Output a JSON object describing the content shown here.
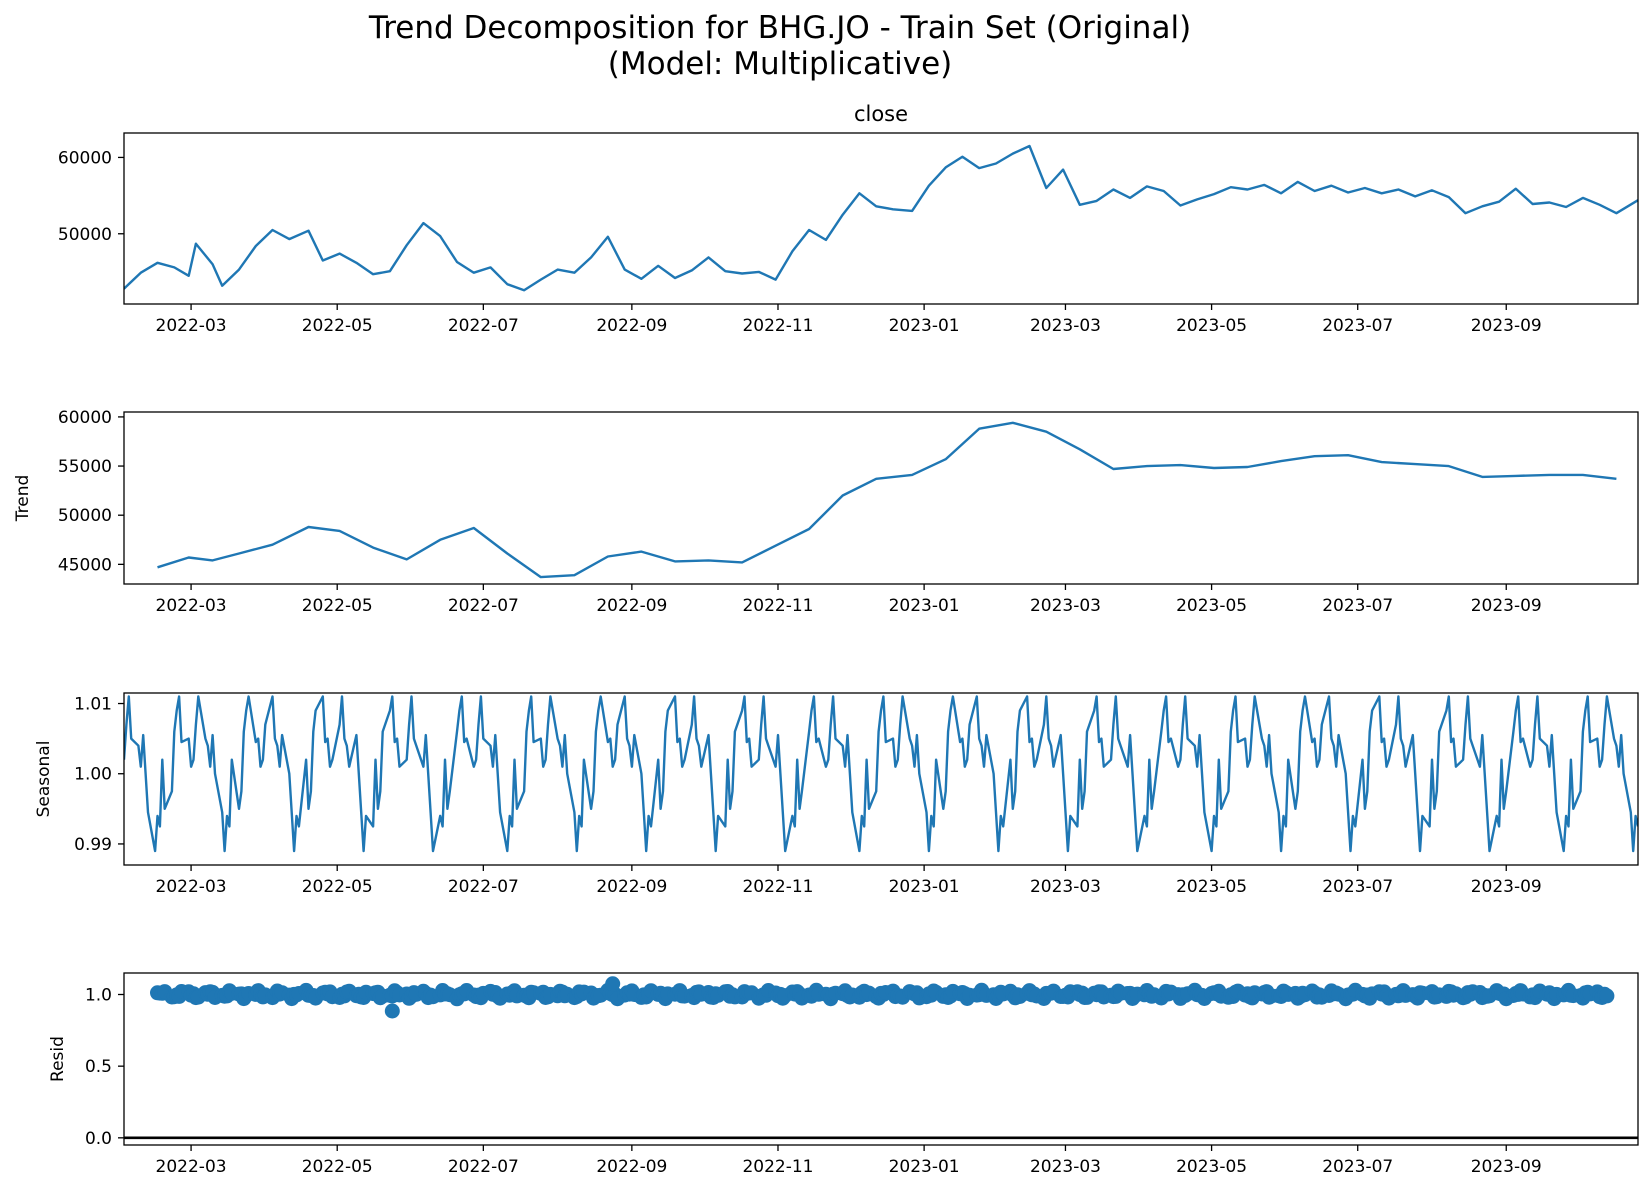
{
  "figure": {
    "title_line1": "Trend Decomposition for BHG.JO - Train Set (Original)",
    "title_line2": "(Model: Multiplicative)"
  },
  "style": {
    "line_color": "#1f77b4",
    "axis_color": "#000000",
    "background": "#ffffff"
  },
  "chart_data": [
    {
      "type": "line",
      "title": "close",
      "ylabel": "",
      "x_range": [
        "2022-02-01",
        "2023-10-26"
      ],
      "ylim": [
        40800,
        63200
      ],
      "yticks": [
        50000,
        60000
      ],
      "xticks": [
        "2022-03",
        "2022-05",
        "2022-07",
        "2022-09",
        "2022-11",
        "2023-01",
        "2023-03",
        "2023-05",
        "2023-07",
        "2023-09"
      ],
      "x": [
        "2022-02-01",
        "2022-02-08",
        "2022-02-15",
        "2022-02-22",
        "2022-02-28",
        "2022-03-03",
        "2022-03-10",
        "2022-03-14",
        "2022-03-21",
        "2022-03-28",
        "2022-04-04",
        "2022-04-11",
        "2022-04-19",
        "2022-04-25",
        "2022-05-02",
        "2022-05-09",
        "2022-05-16",
        "2022-05-23",
        "2022-05-30",
        "2022-06-06",
        "2022-06-13",
        "2022-06-20",
        "2022-06-27",
        "2022-07-04",
        "2022-07-11",
        "2022-07-18",
        "2022-07-25",
        "2022-08-01",
        "2022-08-08",
        "2022-08-15",
        "2022-08-22",
        "2022-08-29",
        "2022-09-05",
        "2022-09-12",
        "2022-09-19",
        "2022-09-26",
        "2022-10-03",
        "2022-10-10",
        "2022-10-17",
        "2022-10-24",
        "2022-10-31",
        "2022-11-07",
        "2022-11-14",
        "2022-11-21",
        "2022-11-28",
        "2022-12-05",
        "2022-12-12",
        "2022-12-19",
        "2022-12-27",
        "2023-01-03",
        "2023-01-10",
        "2023-01-17",
        "2023-01-24",
        "2023-01-31",
        "2023-02-07",
        "2023-02-14",
        "2023-02-21",
        "2023-02-28",
        "2023-03-07",
        "2023-03-14",
        "2023-03-21",
        "2023-03-28",
        "2023-04-04",
        "2023-04-11",
        "2023-04-18",
        "2023-04-25",
        "2023-05-02",
        "2023-05-09",
        "2023-05-16",
        "2023-05-23",
        "2023-05-30",
        "2023-06-06",
        "2023-06-13",
        "2023-06-20",
        "2023-06-27",
        "2023-07-04",
        "2023-07-11",
        "2023-07-18",
        "2023-07-25",
        "2023-08-01",
        "2023-08-08",
        "2023-08-15",
        "2023-08-22",
        "2023-08-29",
        "2023-09-05",
        "2023-09-12",
        "2023-09-19",
        "2023-09-26",
        "2023-10-03",
        "2023-10-10",
        "2023-10-17",
        "2023-10-26"
      ],
      "values": [
        42800,
        44900,
        46200,
        45600,
        44500,
        48700,
        46000,
        43200,
        45300,
        48400,
        50500,
        49300,
        50400,
        46500,
        47400,
        46200,
        44700,
        45100,
        48500,
        51400,
        49700,
        46300,
        44900,
        45600,
        43400,
        42600,
        44000,
        45300,
        44900,
        46900,
        49600,
        45300,
        44100,
        45800,
        44200,
        45200,
        46900,
        45100,
        44800,
        45000,
        44000,
        47700,
        50500,
        49200,
        52500,
        55300,
        53600,
        53200,
        53000,
        56300,
        58700,
        60100,
        58600,
        59200,
        60500,
        61500,
        56000,
        58400,
        53800,
        54300,
        55800,
        54700,
        56200,
        55600,
        53700,
        54500,
        55200,
        56100,
        55800,
        56400,
        55300,
        56800,
        55600,
        56300,
        55400,
        56000,
        55300,
        55800,
        54900,
        55700,
        54800,
        52700,
        53600,
        54200,
        55900,
        53900,
        54100,
        53500,
        54700,
        53800,
        52700,
        54400
      ]
    },
    {
      "type": "line",
      "title": "",
      "ylabel": "Trend",
      "x_range": [
        "2022-02-01",
        "2023-10-26"
      ],
      "ylim": [
        43000,
        60500
      ],
      "yticks": [
        45000,
        50000,
        55000,
        60000
      ],
      "xticks": [
        "2022-03",
        "2022-05",
        "2022-07",
        "2022-09",
        "2022-11",
        "2023-01",
        "2023-03",
        "2023-05",
        "2023-07",
        "2023-09"
      ],
      "x": [
        "2022-02-15",
        "2022-02-28",
        "2022-03-10",
        "2022-03-21",
        "2022-04-04",
        "2022-04-19",
        "2022-05-02",
        "2022-05-16",
        "2022-05-30",
        "2022-06-13",
        "2022-06-27",
        "2022-07-11",
        "2022-07-25",
        "2022-08-08",
        "2022-08-22",
        "2022-09-05",
        "2022-09-19",
        "2022-10-03",
        "2022-10-17",
        "2022-10-31",
        "2022-11-14",
        "2022-11-28",
        "2022-12-12",
        "2022-12-27",
        "2023-01-10",
        "2023-01-24",
        "2023-02-07",
        "2023-02-21",
        "2023-03-07",
        "2023-03-21",
        "2023-04-04",
        "2023-04-18",
        "2023-05-02",
        "2023-05-16",
        "2023-05-30",
        "2023-06-13",
        "2023-06-27",
        "2023-07-11",
        "2023-07-25",
        "2023-08-08",
        "2023-08-22",
        "2023-09-05",
        "2023-09-19",
        "2023-10-03",
        "2023-10-17"
      ],
      "values": [
        44700,
        45700,
        45400,
        46100,
        47000,
        48800,
        48400,
        46700,
        45500,
        47500,
        48700,
        46100,
        43700,
        43900,
        45800,
        46300,
        45300,
        45400,
        45200,
        46900,
        48600,
        52000,
        53700,
        54100,
        55700,
        58800,
        59400,
        58500,
        56700,
        54700,
        55000,
        55100,
        54800,
        54900,
        55500,
        56000,
        56100,
        55400,
        55200,
        55000,
        53900,
        54000,
        54100,
        54100,
        53700
      ]
    },
    {
      "type": "line",
      "title": "",
      "ylabel": "Seasonal",
      "x_range": [
        "2022-02-01",
        "2023-10-26"
      ],
      "ylim": [
        0.987,
        1.0115
      ],
      "yticks": [
        0.99,
        1.0,
        1.01
      ],
      "xticks": [
        "2022-03",
        "2022-05",
        "2022-07",
        "2022-09",
        "2022-11",
        "2023-01",
        "2023-03",
        "2023-05",
        "2023-07",
        "2023-09"
      ],
      "period_trading_days": 21,
      "pattern": [
        1.002,
        1.007,
        1.011,
        1.005,
        1.004,
        1.001,
        1.0055,
        1.0,
        0.9945,
        0.989,
        0.994,
        0.9925,
        1.002,
        0.995,
        0.9975,
        1.006,
        1.009,
        1.011,
        1.0045,
        1.005,
        1.001
      ]
    },
    {
      "type": "scatter",
      "title": "",
      "ylabel": "Resid",
      "x_range": [
        "2022-02-01",
        "2023-10-26"
      ],
      "ylim": [
        -0.05,
        1.15
      ],
      "yticks": [
        0.0,
        0.5,
        1.0
      ],
      "hline": 0.0,
      "xticks": [
        "2022-03",
        "2022-05",
        "2022-07",
        "2022-09",
        "2022-11",
        "2023-01",
        "2023-03",
        "2023-05",
        "2023-07",
        "2023-09"
      ],
      "x_start": "2022-02-15",
      "x_end": "2023-10-13",
      "center": 1.0,
      "spread": 0.03,
      "outliers": [
        {
          "x": "2022-05-24",
          "y": 0.885
        },
        {
          "x": "2022-08-24",
          "y": 1.075
        }
      ]
    }
  ]
}
